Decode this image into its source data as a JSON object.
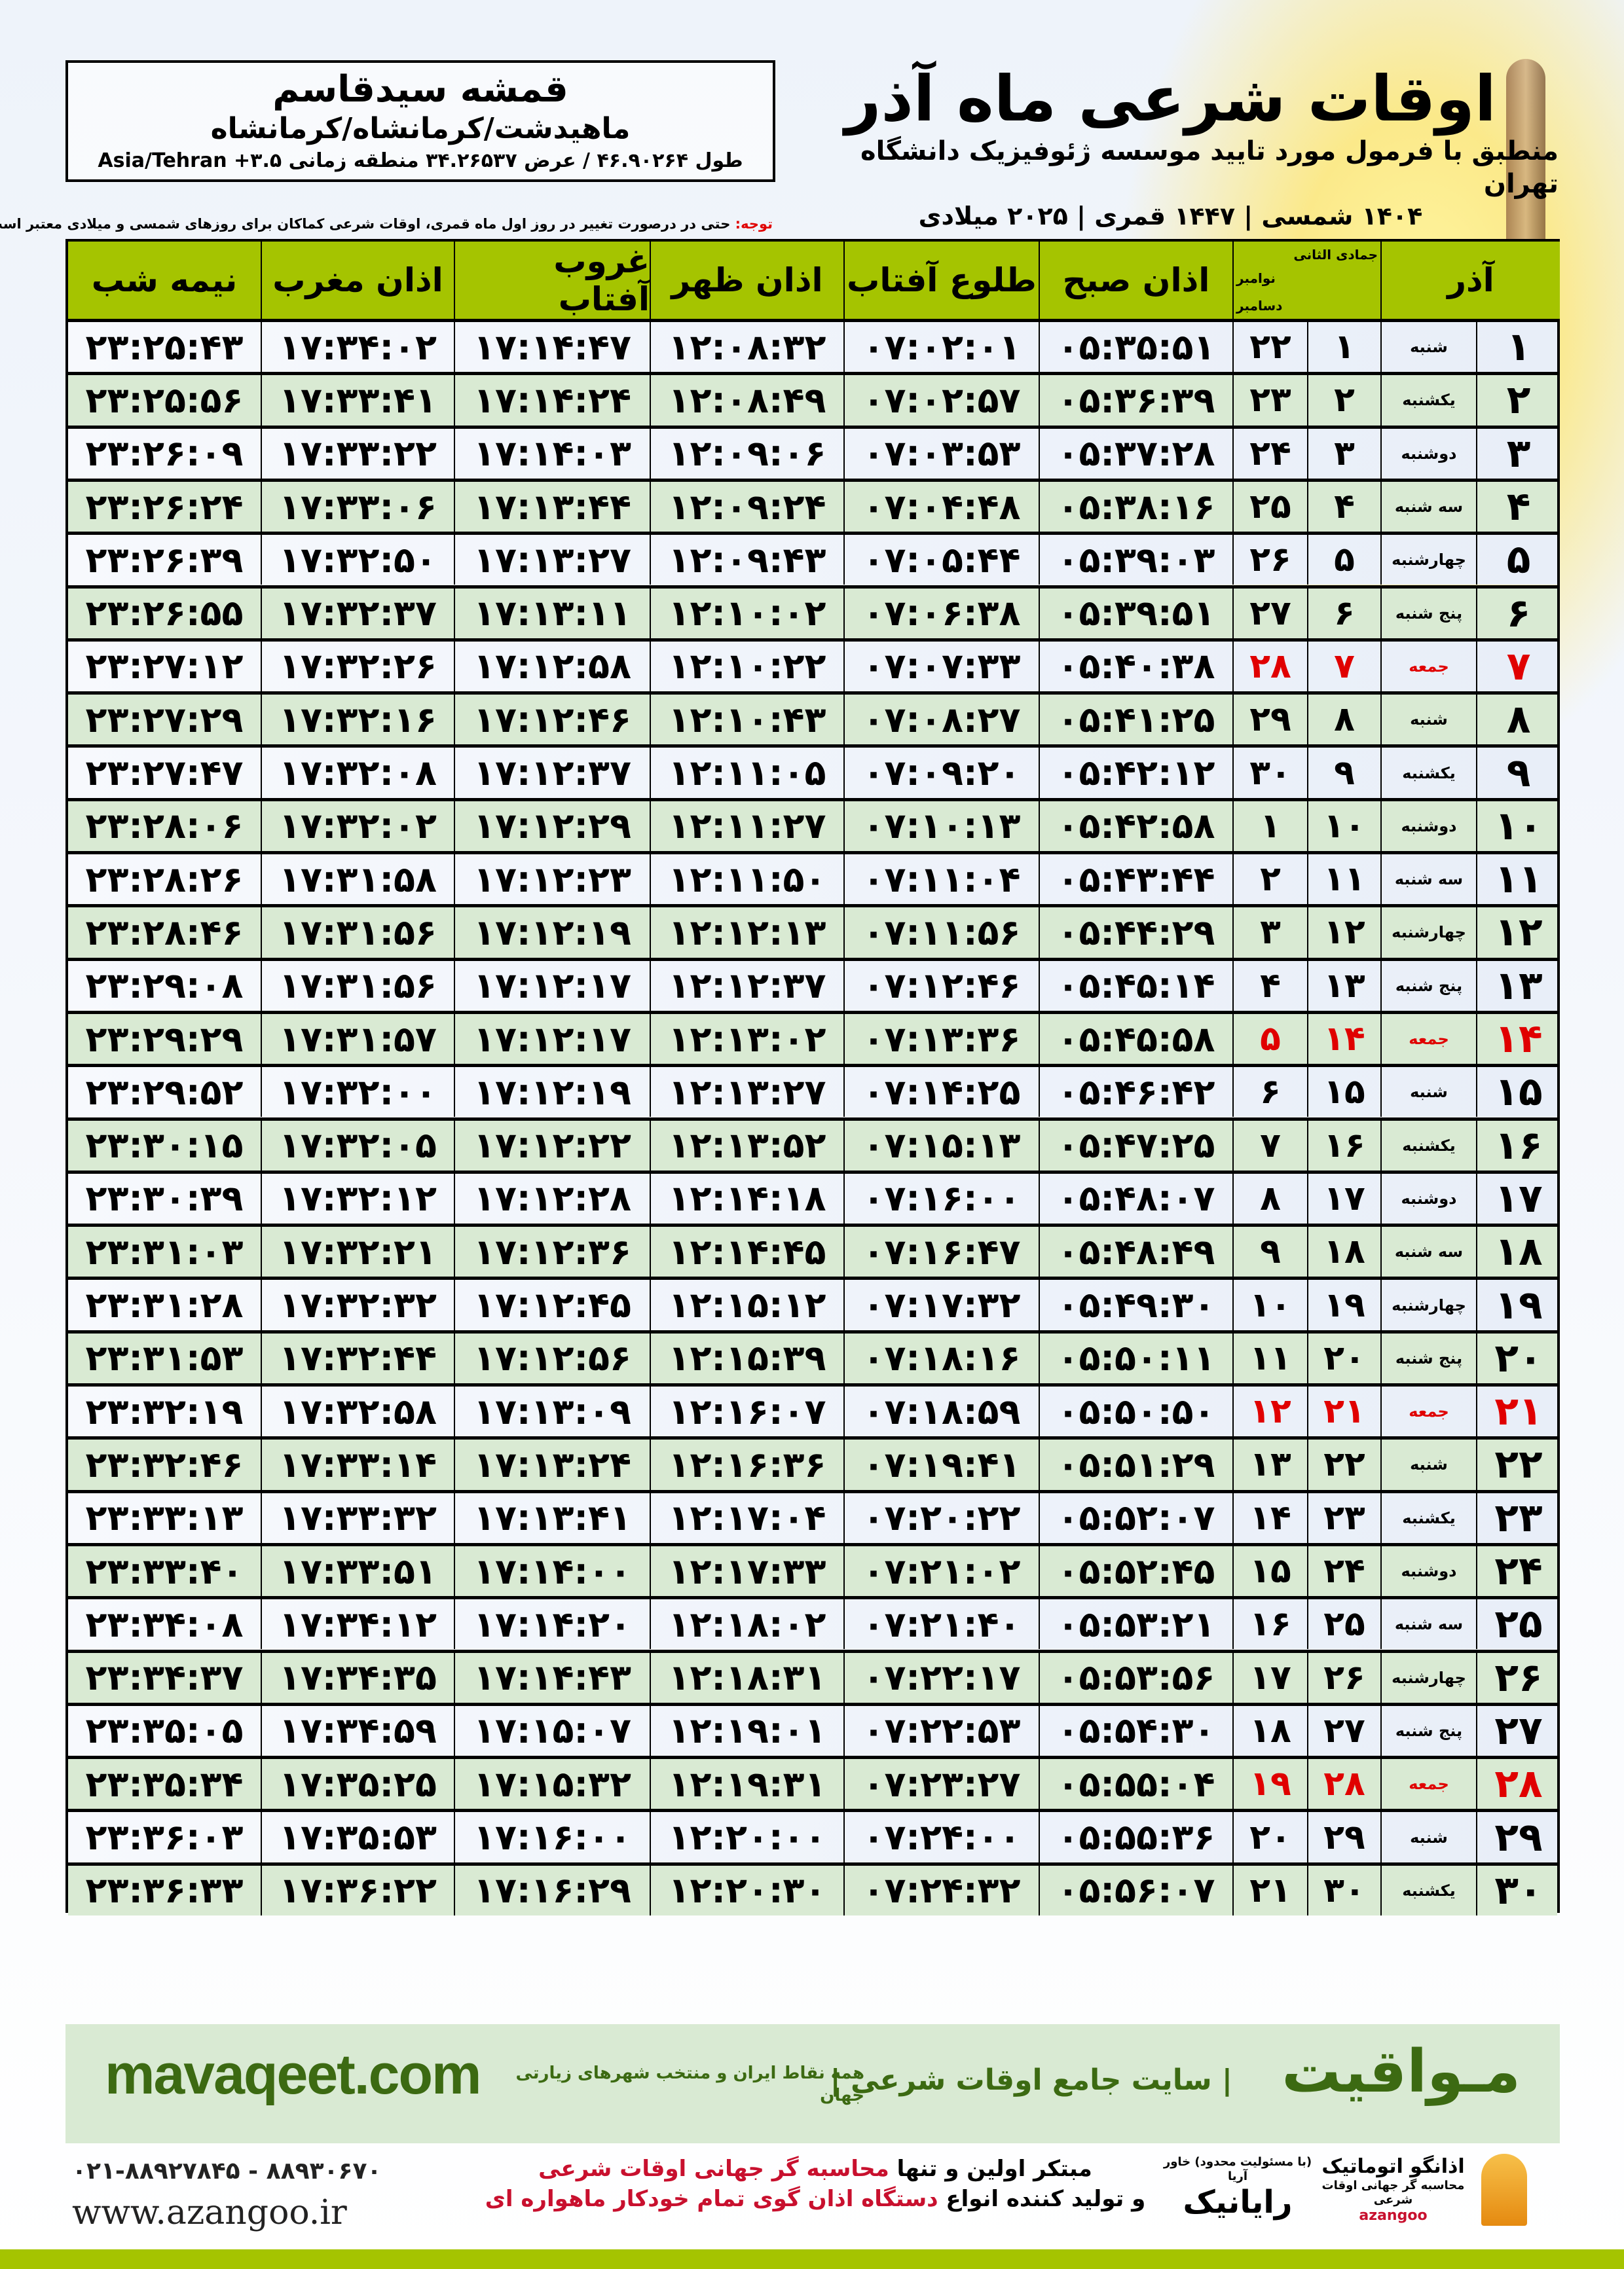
{
  "location": {
    "name": "قمشه سیدقاسم",
    "path": "ماهیدشت/کرمانشاه/کرمانشاه",
    "coords": "طول ۴۶.۹۰۲۶۴ / عرض ۳۴.۲۶۵۳۷ منطقه زمانی Asia/Tehran +۳.۵"
  },
  "header": {
    "title": "اوقات شرعی ماه آذر",
    "subtitle": "منطبق با فرمول مورد تایید موسسه ژئوفیزیک دانشگاه تهران",
    "dates": "۱۴۰۴ شمسی | ۱۴۴۷ قمری | ۲۰۲۵ میلادی",
    "note_label": "توجه:",
    "note": " حتی در درصورت تغییر در روز اول ماه قمری، اوقات شرعی کماکان برای روزهای شمسی و میلادی معتبر است."
  },
  "table": {
    "headers": {
      "nime_shab": "نیمه شب",
      "maghreb": "اذان مغرب",
      "ghorub": "غروب آفتاب",
      "zohr": "اذان ظهر",
      "tolu": "طلوع آفتاب",
      "sobh": "اذان صبح",
      "hijri": "جمادی الثانی",
      "greg_1": "نوامبر",
      "greg_2": "دسامبر",
      "day": "آذر"
    },
    "holiday_color": "#e00000",
    "header_color": "#a5c400",
    "even_row_color": "#d9ead3",
    "rows": [
      {
        "day": "۱",
        "weekday": "شنبه",
        "hijri": "۱",
        "greg": "۲۲",
        "sobh": "۰۵:۳۵:۵۱",
        "tolu": "۰۷:۰۲:۰۱",
        "zohr": "۱۲:۰۸:۳۲",
        "ghorub": "۱۷:۱۴:۴۷",
        "maghreb": "۱۷:۳۴:۰۲",
        "nime_shab": "۲۳:۲۵:۴۳"
      },
      {
        "day": "۲",
        "weekday": "یکشنبه",
        "hijri": "۲",
        "greg": "۲۳",
        "sobh": "۰۵:۳۶:۳۹",
        "tolu": "۰۷:۰۲:۵۷",
        "zohr": "۱۲:۰۸:۴۹",
        "ghorub": "۱۷:۱۴:۲۴",
        "maghreb": "۱۷:۳۳:۴۱",
        "nime_shab": "۲۳:۲۵:۵۶"
      },
      {
        "day": "۳",
        "weekday": "دوشنبه",
        "hijri": "۳",
        "greg": "۲۴",
        "sobh": "۰۵:۳۷:۲۸",
        "tolu": "۰۷:۰۳:۵۳",
        "zohr": "۱۲:۰۹:۰۶",
        "ghorub": "۱۷:۱۴:۰۳",
        "maghreb": "۱۷:۳۳:۲۲",
        "nime_shab": "۲۳:۲۶:۰۹"
      },
      {
        "day": "۴",
        "weekday": "سه شنبه",
        "hijri": "۴",
        "greg": "۲۵",
        "sobh": "۰۵:۳۸:۱۶",
        "tolu": "۰۷:۰۴:۴۸",
        "zohr": "۱۲:۰۹:۲۴",
        "ghorub": "۱۷:۱۳:۴۴",
        "maghreb": "۱۷:۳۳:۰۶",
        "nime_shab": "۲۳:۲۶:۲۴"
      },
      {
        "day": "۵",
        "weekday": "چهارشنبه",
        "hijri": "۵",
        "greg": "۲۶",
        "sobh": "۰۵:۳۹:۰۳",
        "tolu": "۰۷:۰۵:۴۴",
        "zohr": "۱۲:۰۹:۴۳",
        "ghorub": "۱۷:۱۳:۲۷",
        "maghreb": "۱۷:۳۲:۵۰",
        "nime_shab": "۲۳:۲۶:۳۹"
      },
      {
        "day": "۶",
        "weekday": "پنج شنبه",
        "hijri": "۶",
        "greg": "۲۷",
        "sobh": "۰۵:۳۹:۵۱",
        "tolu": "۰۷:۰۶:۳۸",
        "zohr": "۱۲:۱۰:۰۲",
        "ghorub": "۱۷:۱۳:۱۱",
        "maghreb": "۱۷:۳۲:۳۷",
        "nime_shab": "۲۳:۲۶:۵۵"
      },
      {
        "day": "۷",
        "weekday": "جمعه",
        "hijri": "۷",
        "greg": "۲۸",
        "sobh": "۰۵:۴۰:۳۸",
        "tolu": "۰۷:۰۷:۳۳",
        "zohr": "۱۲:۱۰:۲۲",
        "ghorub": "۱۷:۱۲:۵۸",
        "maghreb": "۱۷:۳۲:۲۶",
        "nime_shab": "۲۳:۲۷:۱۲",
        "holiday": true
      },
      {
        "day": "۸",
        "weekday": "شنبه",
        "hijri": "۸",
        "greg": "۲۹",
        "sobh": "۰۵:۴۱:۲۵",
        "tolu": "۰۷:۰۸:۲۷",
        "zohr": "۱۲:۱۰:۴۳",
        "ghorub": "۱۷:۱۲:۴۶",
        "maghreb": "۱۷:۳۲:۱۶",
        "nime_shab": "۲۳:۲۷:۲۹"
      },
      {
        "day": "۹",
        "weekday": "یکشنبه",
        "hijri": "۹",
        "greg": "۳۰",
        "sobh": "۰۵:۴۲:۱۲",
        "tolu": "۰۷:۰۹:۲۰",
        "zohr": "۱۲:۱۱:۰۵",
        "ghorub": "۱۷:۱۲:۳۷",
        "maghreb": "۱۷:۳۲:۰۸",
        "nime_shab": "۲۳:۲۷:۴۷"
      },
      {
        "day": "۱۰",
        "weekday": "دوشنبه",
        "hijri": "۱۰",
        "greg": "۱",
        "sobh": "۰۵:۴۲:۵۸",
        "tolu": "۰۷:۱۰:۱۳",
        "zohr": "۱۲:۱۱:۲۷",
        "ghorub": "۱۷:۱۲:۲۹",
        "maghreb": "۱۷:۳۲:۰۲",
        "nime_shab": "۲۳:۲۸:۰۶"
      },
      {
        "day": "۱۱",
        "weekday": "سه شنبه",
        "hijri": "۱۱",
        "greg": "۲",
        "sobh": "۰۵:۴۳:۴۴",
        "tolu": "۰۷:۱۱:۰۴",
        "zohr": "۱۲:۱۱:۵۰",
        "ghorub": "۱۷:۱۲:۲۳",
        "maghreb": "۱۷:۳۱:۵۸",
        "nime_shab": "۲۳:۲۸:۲۶"
      },
      {
        "day": "۱۲",
        "weekday": "چهارشنبه",
        "hijri": "۱۲",
        "greg": "۳",
        "sobh": "۰۵:۴۴:۲۹",
        "tolu": "۰۷:۱۱:۵۶",
        "zohr": "۱۲:۱۲:۱۳",
        "ghorub": "۱۷:۱۲:۱۹",
        "maghreb": "۱۷:۳۱:۵۶",
        "nime_shab": "۲۳:۲۸:۴۶"
      },
      {
        "day": "۱۳",
        "weekday": "پنج شنبه",
        "hijri": "۱۳",
        "greg": "۴",
        "sobh": "۰۵:۴۵:۱۴",
        "tolu": "۰۷:۱۲:۴۶",
        "zohr": "۱۲:۱۲:۳۷",
        "ghorub": "۱۷:۱۲:۱۷",
        "maghreb": "۱۷:۳۱:۵۶",
        "nime_shab": "۲۳:۲۹:۰۸"
      },
      {
        "day": "۱۴",
        "weekday": "جمعه",
        "hijri": "۱۴",
        "greg": "۵",
        "sobh": "۰۵:۴۵:۵۸",
        "tolu": "۰۷:۱۳:۳۶",
        "zohr": "۱۲:۱۳:۰۲",
        "ghorub": "۱۷:۱۲:۱۷",
        "maghreb": "۱۷:۳۱:۵۷",
        "nime_shab": "۲۳:۲۹:۲۹",
        "holiday": true
      },
      {
        "day": "۱۵",
        "weekday": "شنبه",
        "hijri": "۱۵",
        "greg": "۶",
        "sobh": "۰۵:۴۶:۴۲",
        "tolu": "۰۷:۱۴:۲۵",
        "zohr": "۱۲:۱۳:۲۷",
        "ghorub": "۱۷:۱۲:۱۹",
        "maghreb": "۱۷:۳۲:۰۰",
        "nime_shab": "۲۳:۲۹:۵۲"
      },
      {
        "day": "۱۶",
        "weekday": "یکشنبه",
        "hijri": "۱۶",
        "greg": "۷",
        "sobh": "۰۵:۴۷:۲۵",
        "tolu": "۰۷:۱۵:۱۳",
        "zohr": "۱۲:۱۳:۵۲",
        "ghorub": "۱۷:۱۲:۲۲",
        "maghreb": "۱۷:۳۲:۰۵",
        "nime_shab": "۲۳:۳۰:۱۵"
      },
      {
        "day": "۱۷",
        "weekday": "دوشنبه",
        "hijri": "۱۷",
        "greg": "۸",
        "sobh": "۰۵:۴۸:۰۷",
        "tolu": "۰۷:۱۶:۰۰",
        "zohr": "۱۲:۱۴:۱۸",
        "ghorub": "۱۷:۱۲:۲۸",
        "maghreb": "۱۷:۳۲:۱۲",
        "nime_shab": "۲۳:۳۰:۳۹"
      },
      {
        "day": "۱۸",
        "weekday": "سه شنبه",
        "hijri": "۱۸",
        "greg": "۹",
        "sobh": "۰۵:۴۸:۴۹",
        "tolu": "۰۷:۱۶:۴۷",
        "zohr": "۱۲:۱۴:۴۵",
        "ghorub": "۱۷:۱۲:۳۶",
        "maghreb": "۱۷:۳۲:۲۱",
        "nime_shab": "۲۳:۳۱:۰۳"
      },
      {
        "day": "۱۹",
        "weekday": "چهارشنبه",
        "hijri": "۱۹",
        "greg": "۱۰",
        "sobh": "۰۵:۴۹:۳۰",
        "tolu": "۰۷:۱۷:۳۲",
        "zohr": "۱۲:۱۵:۱۲",
        "ghorub": "۱۷:۱۲:۴۵",
        "maghreb": "۱۷:۳۲:۳۲",
        "nime_shab": "۲۳:۳۱:۲۸"
      },
      {
        "day": "۲۰",
        "weekday": "پنج شنبه",
        "hijri": "۲۰",
        "greg": "۱۱",
        "sobh": "۰۵:۵۰:۱۱",
        "tolu": "۰۷:۱۸:۱۶",
        "zohr": "۱۲:۱۵:۳۹",
        "ghorub": "۱۷:۱۲:۵۶",
        "maghreb": "۱۷:۳۲:۴۴",
        "nime_shab": "۲۳:۳۱:۵۳"
      },
      {
        "day": "۲۱",
        "weekday": "جمعه",
        "hijri": "۲۱",
        "greg": "۱۲",
        "sobh": "۰۵:۵۰:۵۰",
        "tolu": "۰۷:۱۸:۵۹",
        "zohr": "۱۲:۱۶:۰۷",
        "ghorub": "۱۷:۱۳:۰۹",
        "maghreb": "۱۷:۳۲:۵۸",
        "nime_shab": "۲۳:۳۲:۱۹",
        "holiday": true
      },
      {
        "day": "۲۲",
        "weekday": "شنبه",
        "hijri": "۲۲",
        "greg": "۱۳",
        "sobh": "۰۵:۵۱:۲۹",
        "tolu": "۰۷:۱۹:۴۱",
        "zohr": "۱۲:۱۶:۳۶",
        "ghorub": "۱۷:۱۳:۲۴",
        "maghreb": "۱۷:۳۳:۱۴",
        "nime_shab": "۲۳:۳۲:۴۶"
      },
      {
        "day": "۲۳",
        "weekday": "یکشنبه",
        "hijri": "۲۳",
        "greg": "۱۴",
        "sobh": "۰۵:۵۲:۰۷",
        "tolu": "۰۷:۲۰:۲۲",
        "zohr": "۱۲:۱۷:۰۴",
        "ghorub": "۱۷:۱۳:۴۱",
        "maghreb": "۱۷:۳۳:۳۲",
        "nime_shab": "۲۳:۳۳:۱۳"
      },
      {
        "day": "۲۴",
        "weekday": "دوشنبه",
        "hijri": "۲۴",
        "greg": "۱۵",
        "sobh": "۰۵:۵۲:۴۵",
        "tolu": "۰۷:۲۱:۰۲",
        "zohr": "۱۲:۱۷:۳۳",
        "ghorub": "۱۷:۱۴:۰۰",
        "maghreb": "۱۷:۳۳:۵۱",
        "nime_shab": "۲۳:۳۳:۴۰"
      },
      {
        "day": "۲۵",
        "weekday": "سه شنبه",
        "hijri": "۲۵",
        "greg": "۱۶",
        "sobh": "۰۵:۵۳:۲۱",
        "tolu": "۰۷:۲۱:۴۰",
        "zohr": "۱۲:۱۸:۰۲",
        "ghorub": "۱۷:۱۴:۲۰",
        "maghreb": "۱۷:۳۴:۱۲",
        "nime_shab": "۲۳:۳۴:۰۸"
      },
      {
        "day": "۲۶",
        "weekday": "چهارشنبه",
        "hijri": "۲۶",
        "greg": "۱۷",
        "sobh": "۰۵:۵۳:۵۶",
        "tolu": "۰۷:۲۲:۱۷",
        "zohr": "۱۲:۱۸:۳۱",
        "ghorub": "۱۷:۱۴:۴۳",
        "maghreb": "۱۷:۳۴:۳۵",
        "nime_shab": "۲۳:۳۴:۳۷"
      },
      {
        "day": "۲۷",
        "weekday": "پنج شنبه",
        "hijri": "۲۷",
        "greg": "۱۸",
        "sobh": "۰۵:۵۴:۳۰",
        "tolu": "۰۷:۲۲:۵۳",
        "zohr": "۱۲:۱۹:۰۱",
        "ghorub": "۱۷:۱۵:۰۷",
        "maghreb": "۱۷:۳۴:۵۹",
        "nime_shab": "۲۳:۳۵:۰۵"
      },
      {
        "day": "۲۸",
        "weekday": "جمعه",
        "hijri": "۲۸",
        "greg": "۱۹",
        "sobh": "۰۵:۵۵:۰۴",
        "tolu": "۰۷:۲۳:۲۷",
        "zohr": "۱۲:۱۹:۳۱",
        "ghorub": "۱۷:۱۵:۳۲",
        "maghreb": "۱۷:۳۵:۲۵",
        "nime_shab": "۲۳:۳۵:۳۴",
        "holiday": true
      },
      {
        "day": "۲۹",
        "weekday": "شنبه",
        "hijri": "۲۹",
        "greg": "۲۰",
        "sobh": "۰۵:۵۵:۳۶",
        "tolu": "۰۷:۲۴:۰۰",
        "zohr": "۱۲:۲۰:۰۰",
        "ghorub": "۱۷:۱۶:۰۰",
        "maghreb": "۱۷:۳۵:۵۳",
        "nime_shab": "۲۳:۳۶:۰۳"
      },
      {
        "day": "۳۰",
        "weekday": "یکشنبه",
        "hijri": "۳۰",
        "greg": "۲۱",
        "sobh": "۰۵:۵۶:۰۷",
        "tolu": "۰۷:۲۴:۳۲",
        "zohr": "۱۲:۲۰:۳۰",
        "ghorub": "۱۷:۱۶:۲۹",
        "maghreb": "۱۷:۳۶:۲۲",
        "nime_shab": "۲۳:۳۶:۳۳"
      }
    ]
  },
  "banner": {
    "site": "mavaqeet.com",
    "brand": "مـواقیت",
    "tagline": "| سایت جامع اوقات شرعی |",
    "tagline2": "همه نقاط ایران و منتخب شهرهای زیارتی جهان",
    "color": "#3c6a12"
  },
  "footer": {
    "phone": "۰۲۱-۸۸۹۲۷۸۴۵ - ۸۸۹۳۰۶۷۰",
    "web": "www.azangoo.ir",
    "promo_1a": "مبتکر اولین و تنها ",
    "promo_1b": "محاسبه گر جهانی اوقات شرعی",
    "promo_2a": "و تولید کننده انواع ",
    "promo_2b": "دستگاه اذان گوی تمام خودکار ماهواره ای",
    "logo_rayanik": "رایانیک",
    "logo_rayanik_sub": "(با مسئولیت محدود) خاور آریا",
    "logo_azangoo": "اذانگو اتوماتیک",
    "logo_azangoo_sub": "محاسبه گر جهانی اوقات شرعی",
    "logo_azangoo_en": "azangoo"
  }
}
